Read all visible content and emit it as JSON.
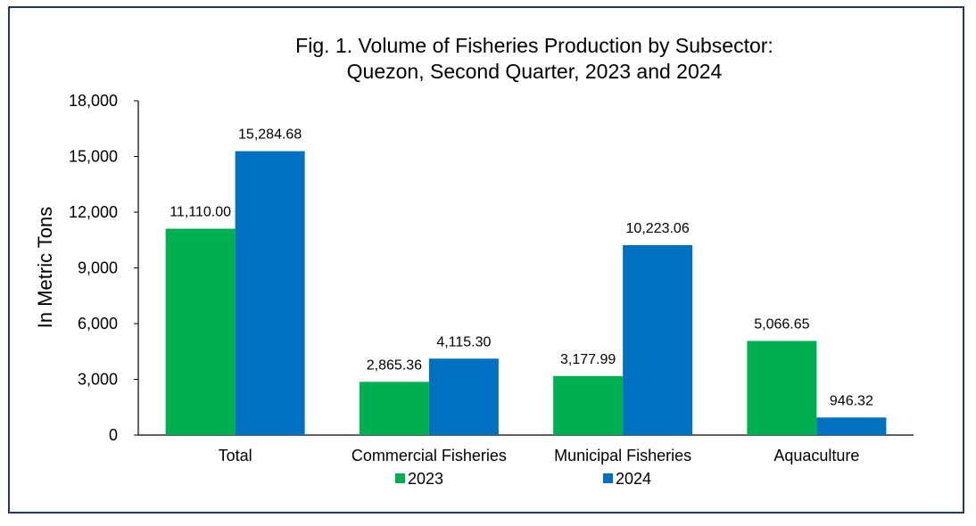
{
  "chart_data": {
    "type": "bar",
    "title_lines": [
      "Fig. 1. Volume of Fisheries Production by Subsector:",
      "Quezon, Second Quarter, 2023 and 2024"
    ],
    "ylabel": "In Metric Tons",
    "xlabel": "",
    "ylim": [
      0,
      18000
    ],
    "yticks": [
      "0",
      "3,000",
      "6,000",
      "9,000",
      "12,000",
      "15,000",
      "18,000"
    ],
    "ytick_values": [
      0,
      3000,
      6000,
      9000,
      12000,
      15000,
      18000
    ],
    "categories": [
      "Total",
      "Commercial Fisheries",
      "Municipal Fisheries",
      "Aquaculture"
    ],
    "series": [
      {
        "name": "2023",
        "color": "#00b050",
        "values": [
          11110.0,
          2865.36,
          3177.99,
          5066.65
        ],
        "labels": [
          "11,110.00",
          "2,865.36",
          "3,177.99",
          "5,066.65"
        ]
      },
      {
        "name": "2024",
        "color": "#0070c0",
        "values": [
          15284.68,
          4115.3,
          10223.06,
          946.32
        ],
        "labels": [
          "15,284.68",
          "4,115.30",
          "10,223.06",
          "946.32"
        ]
      }
    ],
    "grid": false,
    "legend_position": "bottom"
  }
}
